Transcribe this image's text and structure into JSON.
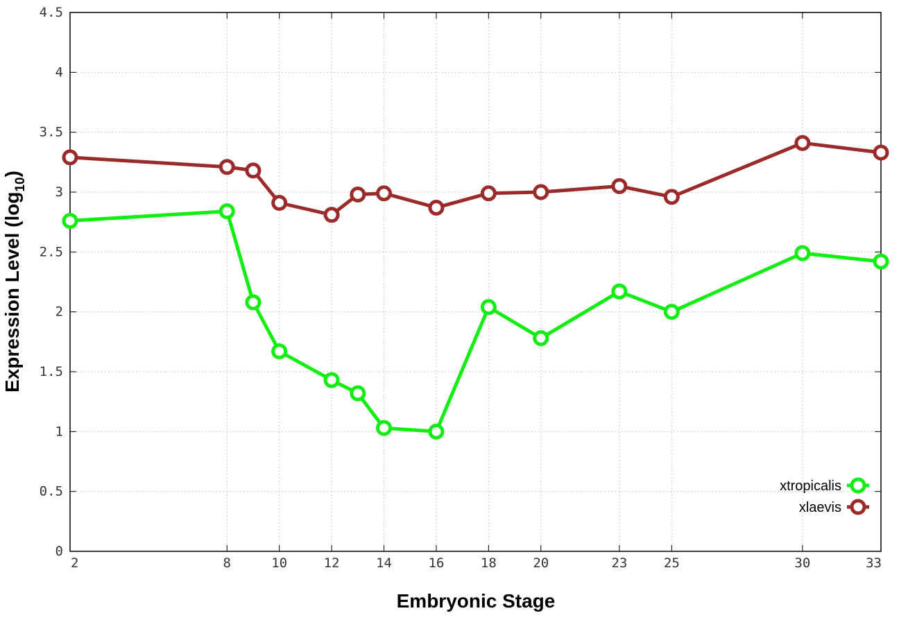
{
  "chart_data": {
    "type": "line",
    "xlabel": "Embryonic Stage",
    "ylabel_main": "Expression Level (log",
    "ylabel_sub": "10",
    "ylabel_close": ")",
    "ylim": [
      0,
      4.5
    ],
    "yticks": [
      "0",
      "0.5",
      "1",
      "1.5",
      "2",
      "2.5",
      "3",
      "3.5",
      "4",
      "4.5"
    ],
    "x": [
      2,
      8,
      9,
      10,
      12,
      13,
      14,
      16,
      18,
      20,
      23,
      25,
      30,
      33
    ],
    "xticks": [
      "2",
      "8",
      "10",
      "12",
      "14",
      "16",
      "18",
      "20",
      "23",
      "25",
      "30",
      "33"
    ],
    "xlim": [
      2,
      33
    ],
    "grid": true,
    "legend_position": "bottom-right",
    "series": [
      {
        "name": "xtropicalis",
        "color": "#11ee11",
        "values": [
          2.76,
          2.84,
          2.08,
          1.67,
          1.43,
          1.32,
          1.03,
          1.0,
          2.04,
          1.78,
          2.17,
          2.0,
          2.49,
          2.42
        ]
      },
      {
        "name": "xlaevis",
        "color": "#9b2b2b",
        "values": [
          3.29,
          3.21,
          3.18,
          2.91,
          2.81,
          2.98,
          2.99,
          2.87,
          2.99,
          3.0,
          3.05,
          2.96,
          3.41,
          3.33
        ]
      }
    ]
  }
}
